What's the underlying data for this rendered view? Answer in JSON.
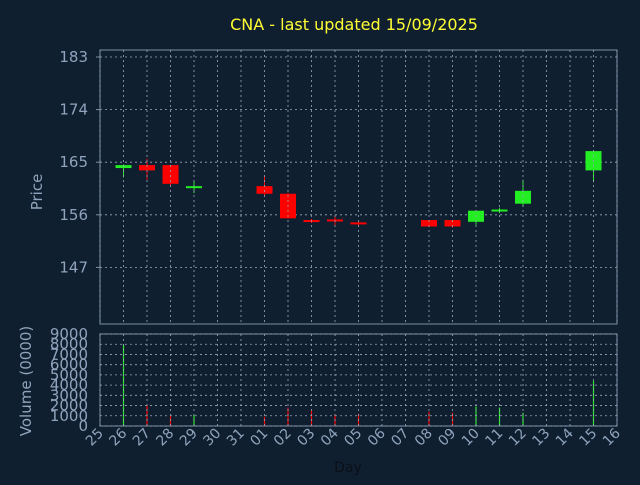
{
  "title": "CNA - last updated 15/09/2025",
  "colors": {
    "background": "#0f1f30",
    "panel_border": "#7f8fa6",
    "grid": "#9aa8bb",
    "title": "#ffff33",
    "text": "#8fa4bc",
    "up": "#22ee22",
    "down": "#ff0000"
  },
  "chart_data": {
    "type": "candlestick",
    "title": "CNA - last updated 15/09/2025",
    "xlabel": "Day",
    "x_ticks": [
      "25",
      "26",
      "27",
      "28",
      "29",
      "30",
      "31",
      "01",
      "02",
      "03",
      "04",
      "05",
      "06",
      "07",
      "08",
      "09",
      "10",
      "11",
      "12",
      "13",
      "14",
      "15",
      "16"
    ],
    "price_panel": {
      "ylabel": "Price",
      "ylim": [
        138,
        183
      ],
      "y_ticks": [
        147,
        156,
        165,
        174,
        183
      ],
      "grid": true,
      "candles": [
        {
          "day": "26",
          "open": 164.0,
          "high": 164.6,
          "low": 162.4,
          "close": 164.5
        },
        {
          "day": "27",
          "open": 164.5,
          "high": 165.6,
          "low": 162.0,
          "close": 163.6
        },
        {
          "day": "28",
          "open": 164.5,
          "high": 164.5,
          "low": 161.0,
          "close": 161.3
        },
        {
          "day": "29",
          "open": 160.7,
          "high": 161.7,
          "low": 159.7,
          "close": 160.9
        },
        {
          "day": "01",
          "open": 160.9,
          "high": 162.6,
          "low": 159.2,
          "close": 159.6
        },
        {
          "day": "02",
          "open": 159.6,
          "high": 159.8,
          "low": 155.3,
          "close": 155.4
        },
        {
          "day": "03",
          "open": 155.1,
          "high": 155.3,
          "low": 154.6,
          "close": 154.9
        },
        {
          "day": "04",
          "open": 155.2,
          "high": 155.8,
          "low": 154.2,
          "close": 155.0
        },
        {
          "day": "05",
          "open": 154.7,
          "high": 154.9,
          "low": 154.1,
          "close": 154.5
        },
        {
          "day": "08",
          "open": 155.1,
          "high": 155.1,
          "low": 153.9,
          "close": 154.0
        },
        {
          "day": "09",
          "open": 155.1,
          "high": 155.1,
          "low": 153.8,
          "close": 154.0
        },
        {
          "day": "10",
          "open": 154.8,
          "high": 156.7,
          "low": 154.3,
          "close": 156.7
        },
        {
          "day": "11",
          "open": 156.7,
          "high": 157.2,
          "low": 156.3,
          "close": 156.9
        },
        {
          "day": "12",
          "open": 157.9,
          "high": 162.0,
          "low": 157.4,
          "close": 160.1
        },
        {
          "day": "15",
          "open": 163.6,
          "high": 167.0,
          "low": 161.6,
          "close": 166.9
        }
      ]
    },
    "volume_panel": {
      "ylabel": "Volume (0000)",
      "ylim": [
        0,
        9000
      ],
      "y_ticks": [
        0,
        1000,
        2000,
        3000,
        4000,
        5000,
        6000,
        7000,
        8000,
        9000
      ],
      "grid": true,
      "bars": [
        {
          "day": "26",
          "value": 8000,
          "direction": "up"
        },
        {
          "day": "27",
          "value": 2000,
          "direction": "down"
        },
        {
          "day": "28",
          "value": 1000,
          "direction": "down"
        },
        {
          "day": "29",
          "value": 1100,
          "direction": "up"
        },
        {
          "day": "01",
          "value": 900,
          "direction": "down"
        },
        {
          "day": "02",
          "value": 1800,
          "direction": "down"
        },
        {
          "day": "03",
          "value": 1500,
          "direction": "down"
        },
        {
          "day": "04",
          "value": 1100,
          "direction": "down"
        },
        {
          "day": "05",
          "value": 1200,
          "direction": "down"
        },
        {
          "day": "08",
          "value": 1400,
          "direction": "down"
        },
        {
          "day": "09",
          "value": 1300,
          "direction": "down"
        },
        {
          "day": "10",
          "value": 1900,
          "direction": "up"
        },
        {
          "day": "11",
          "value": 1800,
          "direction": "up"
        },
        {
          "day": "12",
          "value": 1300,
          "direction": "up"
        },
        {
          "day": "15",
          "value": 4400,
          "direction": "up"
        }
      ]
    }
  }
}
